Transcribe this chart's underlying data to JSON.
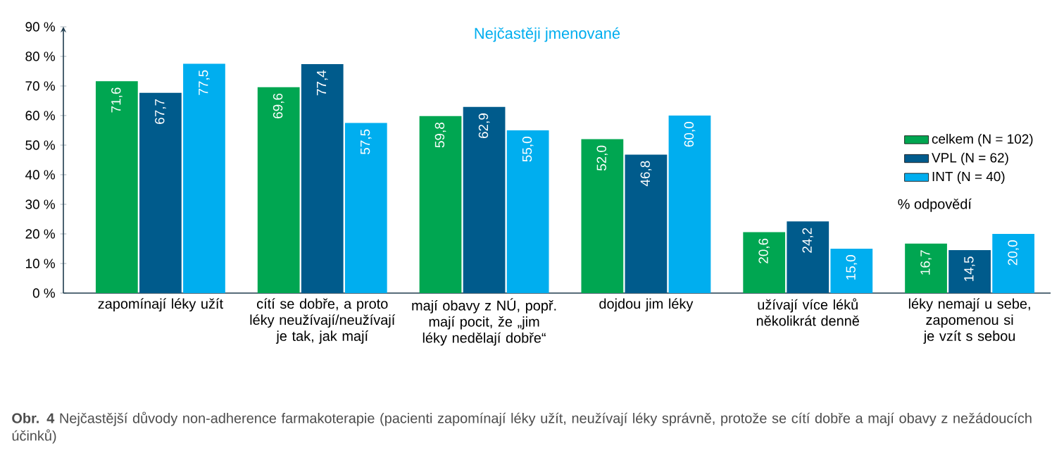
{
  "chart_data": {
    "type": "bar",
    "title": "Nejčastěji jmenované",
    "categories": [
      "zapomínají léky užít",
      "cítí se dobře, a proto léky neužívají/neužívají je tak, jak mají",
      "mají obavy z NÚ, popř. mají pocit, že „jim léky nedělají dobře“",
      "dojdou jim léky",
      "užívají více léků několikrát denně",
      "léky nemají u sebe, zapomenou si je vzít s sebou"
    ],
    "series": [
      {
        "name": "celkem (N = 102)",
        "color": "#00a651",
        "values": [
          71.6,
          69.6,
          59.8,
          52.0,
          20.6,
          16.7
        ],
        "value_labels": [
          "71,6",
          "69,6",
          "59,8",
          "52,0",
          "20,6",
          "16,7"
        ]
      },
      {
        "name": "VPL (N = 62)",
        "color": "#005b8c",
        "values": [
          67.7,
          77.4,
          62.9,
          46.8,
          24.2,
          14.5
        ],
        "value_labels": [
          "67,7",
          "77,4",
          "62,9",
          "46,8",
          "24,2",
          "14,5"
        ]
      },
      {
        "name": "INT (N = 40)",
        "color": "#00aeef",
        "values": [
          77.5,
          57.5,
          55.0,
          60.0,
          15.0,
          20.0
        ],
        "value_labels": [
          "77,5",
          "57,5",
          "55,0",
          "60,0",
          "15,0",
          "20,0"
        ]
      }
    ],
    "ylim": [
      0,
      90
    ],
    "yticks": [
      {
        "value": 0,
        "label": "0 %"
      },
      {
        "value": 10,
        "label": "10 %"
      },
      {
        "value": 20,
        "label": "20 %"
      },
      {
        "value": 30,
        "label": "30 %"
      },
      {
        "value": 40,
        "label": "40 %"
      },
      {
        "value": 50,
        "label": "50 %"
      },
      {
        "value": 60,
        "label": "60 %"
      },
      {
        "value": 70,
        "label": "70 %"
      },
      {
        "value": 80,
        "label": "80 %"
      },
      {
        "value": 90,
        "label": "90 %"
      }
    ],
    "legend": "right",
    "annotations": [
      "% odpovědí",
      "**Obr. 4** Nejčastější důvody non-adherence farmakoterapie (pacienti zapomínají léky užít, neužívají léky správně, protože se cítí dobře a mají obavy z nežádoucích účinků)"
    ]
  }
}
